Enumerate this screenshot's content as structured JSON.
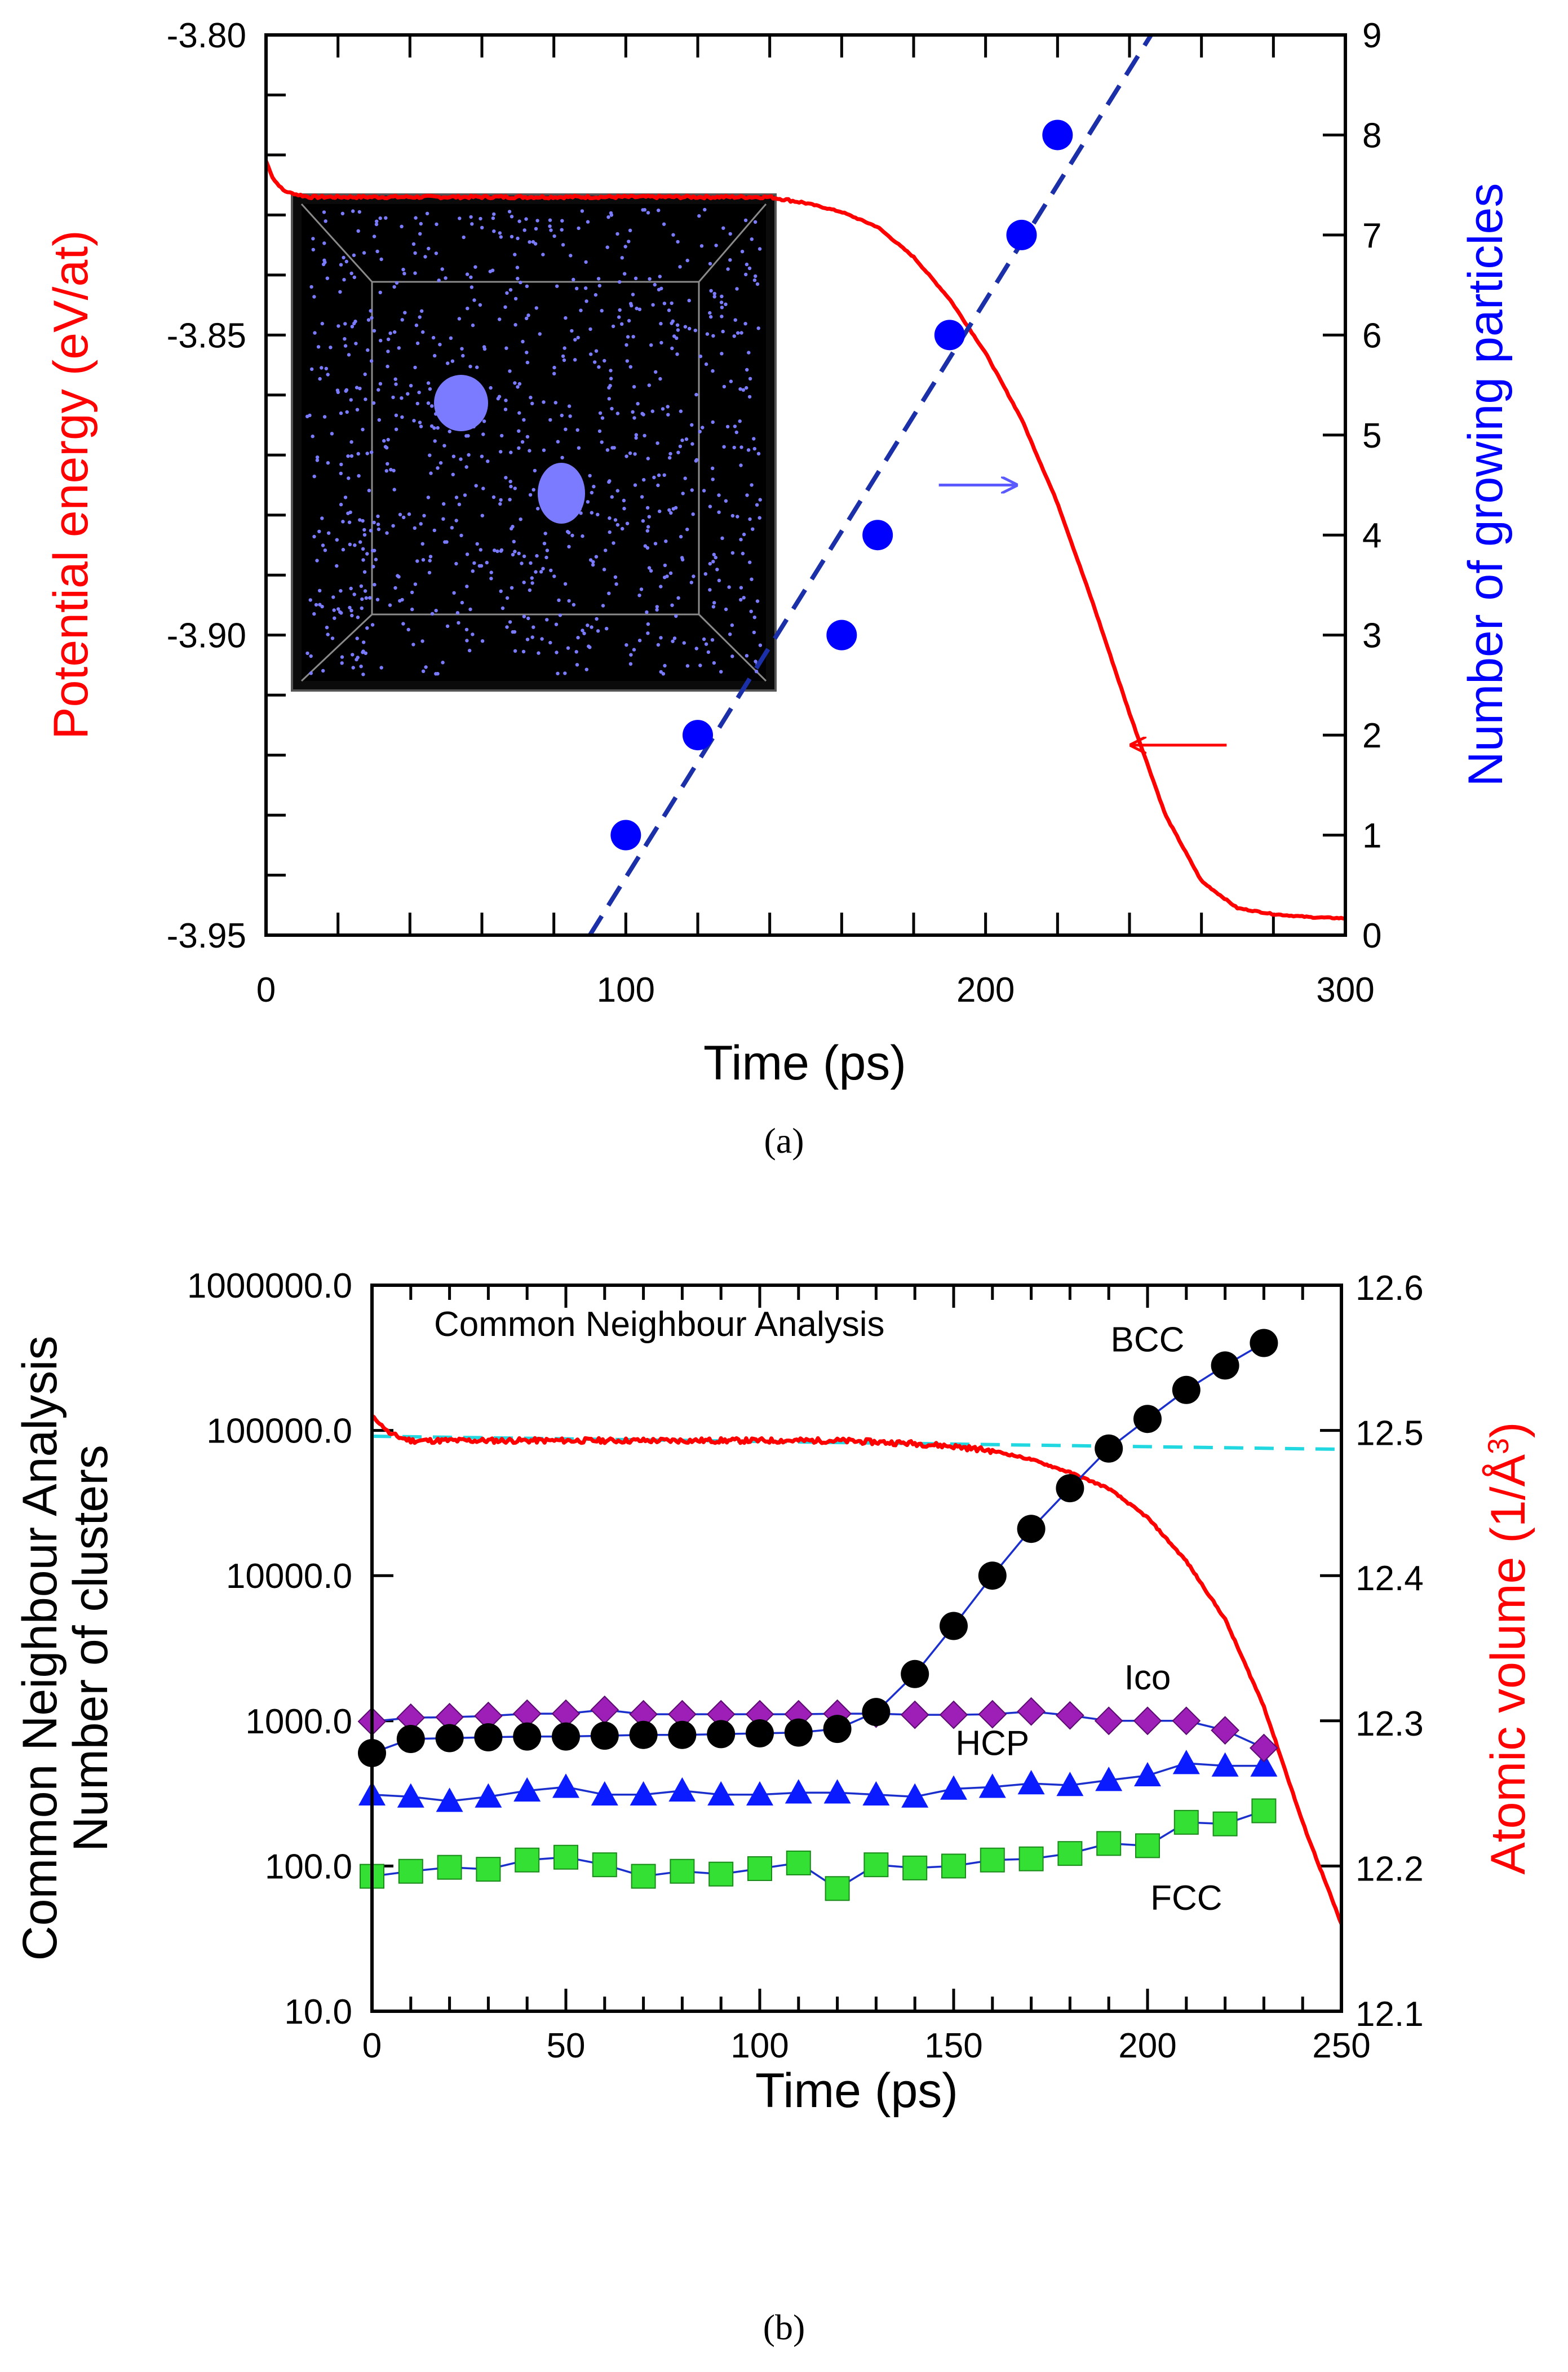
{
  "colors": {
    "energy": "#ff0000",
    "particles": "#0000ff",
    "fit": "#1a2fa8",
    "volume_ref": "#22d8e0",
    "bcc": "#000000",
    "ico": "#9e1fb8",
    "hcp": "#0a1cff",
    "fcc": "#33e033",
    "connector": "#1a2fcc",
    "inset_bg": "#000000",
    "inset_atoms": "#7b7bff"
  },
  "caption_a": "(a)",
  "caption_b": "(b)",
  "chart_data": [
    {
      "type": "line",
      "xlabel": "Time (ps)",
      "ylabel": "Potential energy (eV/at)",
      "y2label": "Number of growing particles",
      "xlim": [
        0,
        300
      ],
      "ylim": [
        -3.95,
        -3.8
      ],
      "y2lim": [
        0,
        9
      ],
      "x_ticks": [
        "0",
        "100",
        "200",
        "300"
      ],
      "x_tick_values": [
        0,
        100,
        200,
        300
      ],
      "y_ticks": [
        "-3.80",
        "-3.85",
        "-3.90",
        "-3.95"
      ],
      "y_tick_values": [
        -3.8,
        -3.85,
        -3.9,
        -3.95
      ],
      "y2_ticks": [
        "9",
        "8",
        "7",
        "6",
        "5",
        "4",
        "3",
        "2",
        "1",
        "0"
      ],
      "y2_tick_values": [
        9,
        8,
        7,
        6,
        5,
        4,
        3,
        2,
        1,
        0
      ],
      "energy_curve": {
        "x": [
          0,
          2,
          5,
          8,
          12,
          20,
          40,
          80,
          120,
          140,
          150,
          160,
          170,
          180,
          190,
          200,
          210,
          220,
          230,
          240,
          250,
          260,
          270,
          280,
          290,
          300
        ],
        "y": [
          -3.821,
          -3.824,
          -3.826,
          -3.8265,
          -3.827,
          -3.827,
          -3.827,
          -3.827,
          -3.827,
          -3.827,
          -3.828,
          -3.8295,
          -3.832,
          -3.837,
          -3.844,
          -3.853,
          -3.864,
          -3.878,
          -3.895,
          -3.913,
          -3.93,
          -3.941,
          -3.9455,
          -3.9465,
          -3.947,
          -3.9472
        ]
      },
      "particles": {
        "x": [
          100,
          120,
          160,
          170,
          190,
          210,
          220
        ],
        "y": [
          1,
          2,
          3,
          4,
          6,
          7,
          8
        ]
      },
      "fit_line": {
        "x": [
          90,
          246
        ],
        "y": [
          0,
          9
        ]
      },
      "annotations": {
        "blue_arrow": {
          "from": [
            187,
            4.5
          ],
          "to": [
            209,
            4.5
          ]
        },
        "red_arrow": {
          "from": [
            267,
            1.9
          ],
          "to": [
            240,
            1.9
          ]
        }
      }
    },
    {
      "type": "line",
      "xlabel": "Time (ps)",
      "ylabel_line1": "Common Neighbour Analysis",
      "ylabel_line2": "Number of clusters",
      "y2label_main": "Atomic volume ",
      "y2label_unit_pre": "(1/Å",
      "y2label_unit_sup": "3",
      "y2label_unit_post": ")",
      "title": "Common Neighbour Analysis",
      "xlim": [
        0,
        250
      ],
      "ylim": [
        10,
        1000000
      ],
      "yscale": "log",
      "y2lim": [
        12.1,
        12.6
      ],
      "x_ticks": [
        "0",
        "50",
        "100",
        "150",
        "200",
        "250"
      ],
      "x_tick_values": [
        0,
        50,
        100,
        150,
        200,
        250
      ],
      "y_ticks": [
        "1000000.0",
        "100000.0",
        "10000.0",
        "1000.0",
        "100.0",
        "10.0"
      ],
      "y_tick_values": [
        1000000,
        100000,
        10000,
        1000,
        100,
        10
      ],
      "y2_ticks": [
        "12.6",
        "12.5",
        "12.4",
        "12.3",
        "12.2",
        "12.1"
      ],
      "y2_tick_values": [
        12.6,
        12.5,
        12.4,
        12.3,
        12.2,
        12.1
      ],
      "series": [
        {
          "name": "BCC",
          "marker": "circle",
          "x": [
            0,
            10,
            20,
            30,
            40,
            50,
            60,
            70,
            80,
            90,
            100,
            110,
            120,
            130,
            140,
            150,
            160,
            170,
            180,
            190,
            200,
            210,
            220,
            230
          ],
          "values": [
            600,
            750,
            760,
            770,
            780,
            780,
            790,
            800,
            800,
            810,
            820,
            830,
            880,
            1150,
            2100,
            4500,
            10000,
            21000,
            40000,
            75000,
            120000,
            190000,
            280000,
            400000
          ]
        },
        {
          "name": "Ico",
          "marker": "diamond",
          "x": [
            0,
            10,
            20,
            30,
            40,
            50,
            60,
            70,
            80,
            90,
            100,
            110,
            120,
            130,
            140,
            150,
            160,
            170,
            180,
            190,
            200,
            210,
            220,
            230
          ],
          "values": [
            990,
            1050,
            1060,
            1080,
            1120,
            1120,
            1190,
            1110,
            1110,
            1110,
            1110,
            1110,
            1120,
            1120,
            1100,
            1100,
            1110,
            1160,
            1090,
            1000,
            1000,
            1000,
            860,
            650
          ]
        },
        {
          "name": "HCP",
          "marker": "triangle",
          "x": [
            0,
            10,
            20,
            30,
            40,
            50,
            60,
            70,
            80,
            90,
            100,
            110,
            120,
            130,
            140,
            150,
            160,
            170,
            180,
            190,
            200,
            210,
            220,
            230
          ],
          "values": [
            310,
            300,
            280,
            300,
            330,
            350,
            310,
            310,
            330,
            310,
            310,
            320,
            320,
            310,
            300,
            340,
            350,
            370,
            360,
            390,
            420,
            510,
            490,
            490
          ]
        },
        {
          "name": "FCC",
          "marker": "square",
          "x": [
            0,
            10,
            20,
            30,
            40,
            50,
            60,
            70,
            80,
            90,
            100,
            110,
            120,
            130,
            140,
            150,
            160,
            170,
            180,
            190,
            200,
            210,
            220,
            230
          ],
          "values": [
            85,
            92,
            98,
            95,
            110,
            115,
            102,
            85,
            92,
            88,
            96,
            105,
            70,
            102,
            97,
            100,
            110,
            112,
            122,
            143,
            138,
            200,
            195,
            240
          ]
        }
      ],
      "volume_curve": {
        "x": [
          0,
          5,
          10,
          40,
          80,
          120,
          140,
          150,
          160,
          170,
          180,
          190,
          200,
          210,
          220,
          230,
          240,
          250
        ],
        "y": [
          12.51,
          12.497,
          12.493,
          12.493,
          12.493,
          12.493,
          12.491,
          12.489,
          12.486,
          12.48,
          12.471,
          12.46,
          12.44,
          12.41,
          12.37,
          12.31,
          12.23,
          12.16
        ]
      },
      "reference_line": {
        "x": [
          0,
          250
        ],
        "y": [
          12.496,
          12.487
        ]
      },
      "labels": {
        "bcc": {
          "text": "BCC",
          "x": 200,
          "y": 350000
        },
        "ico": {
          "text": "Ico",
          "x": 200,
          "y": 1650
        },
        "hcp": {
          "text": "HCP",
          "x": 160,
          "y": 580
        },
        "fcc": {
          "text": "FCC",
          "x": 210,
          "y": 50
        }
      }
    }
  ]
}
